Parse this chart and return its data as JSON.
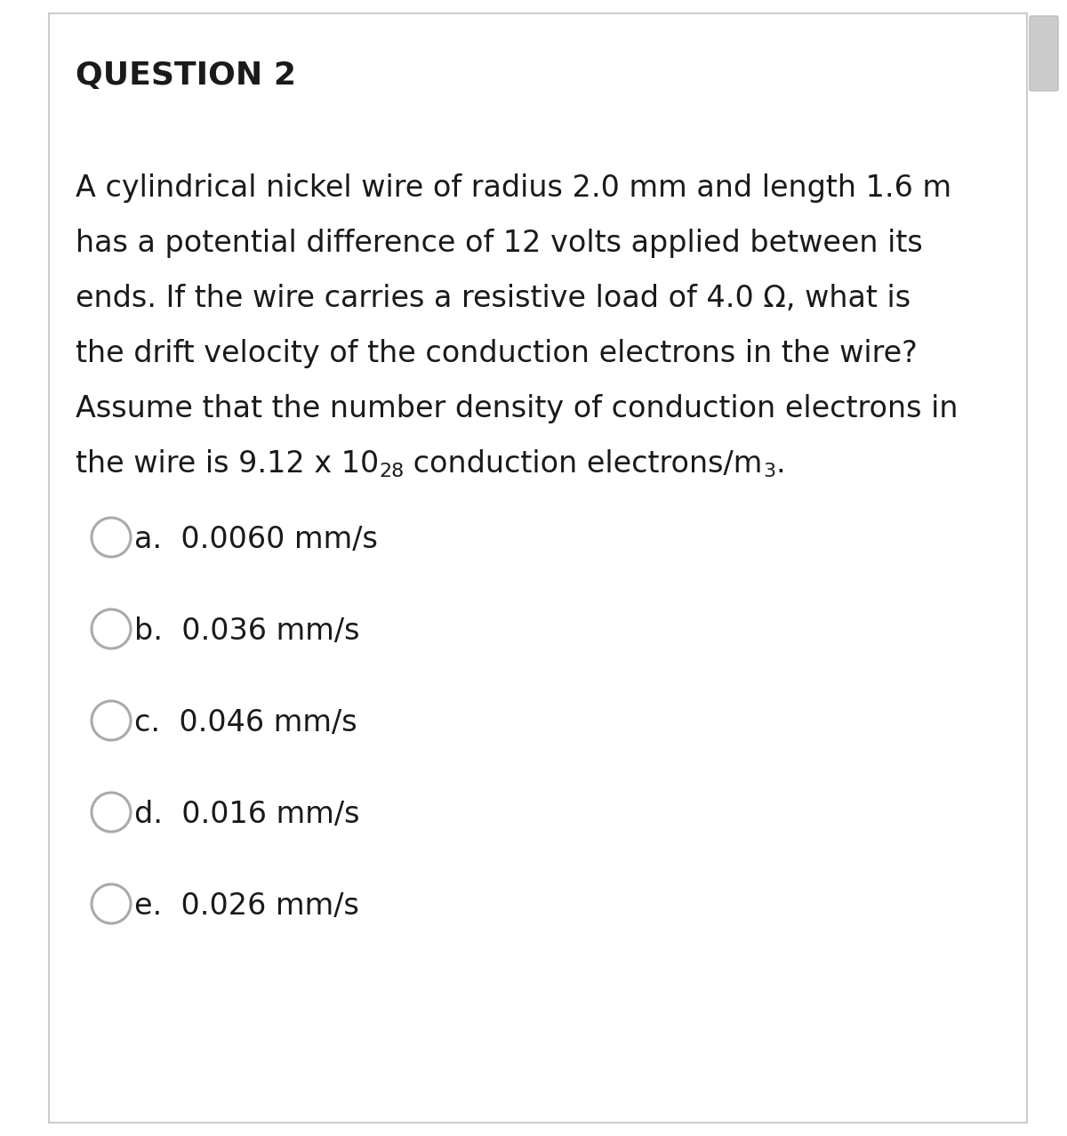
{
  "title": "QUESTION 2",
  "question_lines": [
    "A cylindrical nickel wire of radius 2.0 mm and length 1.6 m",
    "has a potential difference of 12 volts applied between its",
    "ends. If the wire carries a resistive load of 4.0 Ω, what is",
    "the drift velocity of the conduction electrons in the wire?",
    "Assume that the number density of conduction electrons in",
    "the wire is 9.12 x 10"
  ],
  "last_line_suffix": " conduction electrons/m",
  "superscript_28": "28",
  "superscript_3": "3",
  "options": [
    "a.  0.0060 mm/s",
    "b.  0.036 mm/s",
    "c.  0.046 mm/s",
    "d.  0.016 mm/s",
    "e.  0.026 mm/s"
  ],
  "bg_color": "#ffffff",
  "text_color": "#1a1a1a",
  "title_color": "#1a1a1a",
  "circle_color": "#aaaaaa",
  "border_color": "#cccccc",
  "scrollbar_color": "#cccccc"
}
